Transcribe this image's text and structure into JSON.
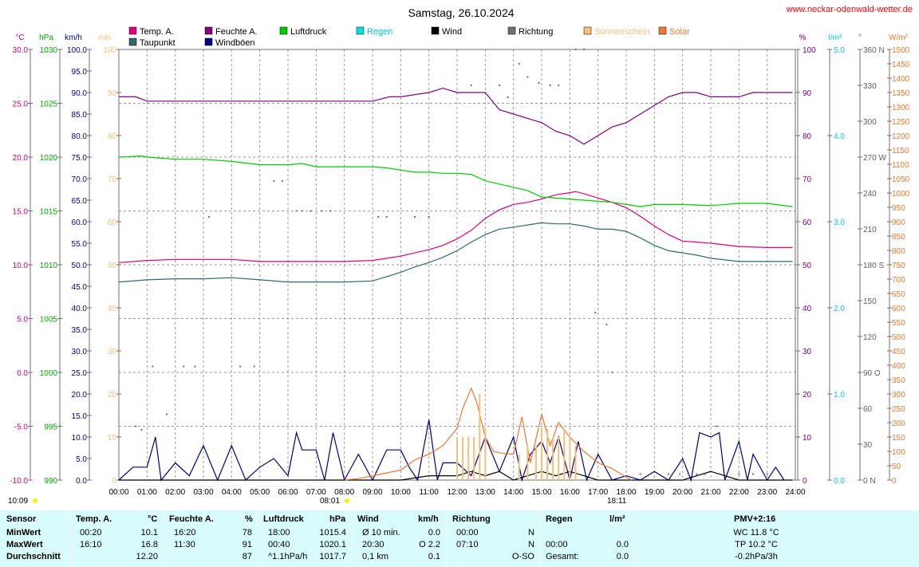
{
  "title": "Samstag, 26.10.2024",
  "site_url": "www.neckar-odenwald-wetter.de",
  "legend": [
    {
      "label": "Temp. A.",
      "color": "#e0007a"
    },
    {
      "label": "Taupunkt",
      "color": "#2f6b6b"
    },
    {
      "label": "Feuchte A.",
      "color": "#800080"
    },
    {
      "label": "Windböen",
      "color": "#000080"
    },
    {
      "label": "Luftdruck",
      "color": "#00cc00"
    },
    {
      "label": "Regen",
      "color": "#00e0e0"
    },
    {
      "label": "Wind",
      "color": "#000000"
    },
    {
      "label": "Richtung",
      "color": "#707070"
    },
    {
      "label": "Sonnenschein",
      "color": "#f5c07a"
    },
    {
      "label": "Solar",
      "color": "#f07830"
    }
  ],
  "axis_units": {
    "temp": "°C",
    "pressure": "hPa",
    "wind": "km/h",
    "sun": "min",
    "humidity": "%",
    "rain": "l/m²",
    "direction": "°",
    "solar": "W/m²"
  },
  "sun_marks": {
    "start": "10:09",
    "sunrise": "08:01",
    "sunset": "18:11"
  },
  "chart_data": {
    "type": "line",
    "x_range": [
      "00:00",
      "24:00"
    ],
    "x_ticks": [
      "00:00",
      "01:00",
      "02:00",
      "03:00",
      "04:00",
      "05:00",
      "06:00",
      "07:00",
      "08:00",
      "09:00",
      "10:00",
      "11:00",
      "12:00",
      "13:00",
      "14:00",
      "15:00",
      "16:00",
      "17:00",
      "18:00",
      "19:00",
      "20:00",
      "21:00",
      "22:00",
      "23:00",
      "24:00"
    ],
    "axes": {
      "temp": {
        "range": [
          -10,
          30
        ],
        "ticks": [
          "30.0",
          "25.0",
          "20.0",
          "15.0",
          "10.0",
          "5.0",
          "0.0",
          "-5.0",
          "-10.0"
        ],
        "color": "#e0007a"
      },
      "pressure": {
        "range": [
          990,
          1030
        ],
        "ticks": [
          "1030",
          "1025",
          "1020",
          "1015",
          "1010",
          "1005",
          "1000",
          "995",
          "990"
        ],
        "color": "#00aa00"
      },
      "wind": {
        "range": [
          0,
          100
        ],
        "ticks": [
          "100.0",
          "95.0",
          "90.0",
          "85.0",
          "80.0",
          "75.0",
          "70.0",
          "65.0",
          "60.0",
          "55.0",
          "50.0",
          "45.0",
          "40.0",
          "35.0",
          "30.0",
          "25.0",
          "20.0",
          "15.0",
          "10.0",
          "5.0",
          "0.0"
        ],
        "color": "#000080"
      },
      "sun": {
        "range": [
          0,
          100
        ],
        "ticks": [
          "100",
          "90",
          "80",
          "70",
          "60",
          "50",
          "40",
          "30",
          "20",
          "10",
          "0"
        ],
        "color": "#f5c07a"
      },
      "humidity": {
        "range": [
          0,
          100
        ],
        "ticks": [
          "100",
          "90",
          "80",
          "70",
          "60",
          "50",
          "40",
          "30",
          "20",
          "10",
          "0"
        ],
        "color": "#800080"
      },
      "rain": {
        "range": [
          0,
          5
        ],
        "ticks": [
          "5.0",
          "4.0",
          "3.0",
          "2.0",
          "1.0",
          "0.0"
        ],
        "color": "#00cccc"
      },
      "direction": {
        "range": [
          0,
          360
        ],
        "ticks": [
          "360 N",
          "330",
          "300",
          "270 W",
          "240",
          "210",
          "180 S",
          "150",
          "120",
          "90  O",
          "60",
          "30",
          "0   N"
        ],
        "color": "#606060"
      },
      "solar": {
        "range": [
          0,
          1500
        ],
        "ticks": [
          "1500",
          "1450",
          "1400",
          "1350",
          "1300",
          "1250",
          "1200",
          "1150",
          "1100",
          "1050",
          "1000",
          "950",
          "900",
          "850",
          "800",
          "750",
          "700",
          "650",
          "600",
          "550",
          "500",
          "450",
          "400",
          "350",
          "300",
          "250",
          "200",
          "150",
          "100",
          "50",
          "0"
        ],
        "color": "#f07830"
      }
    },
    "series": [
      {
        "name": "Temp. A.",
        "axis": "temp",
        "color": "#e0007a",
        "x": [
          0,
          1,
          2,
          3,
          4,
          5,
          6,
          7,
          8,
          9,
          9.5,
          10,
          10.5,
          11,
          11.5,
          12,
          12.5,
          13,
          13.5,
          14,
          14.5,
          15,
          15.5,
          16,
          16.2,
          16.5,
          17,
          17.5,
          18,
          18.5,
          19,
          19.5,
          20,
          20.5,
          21,
          22,
          23,
          23.9
        ],
        "y": [
          10.2,
          10.4,
          10.5,
          10.5,
          10.5,
          10.3,
          10.3,
          10.3,
          10.3,
          10.4,
          10.6,
          10.8,
          11.1,
          11.4,
          11.8,
          12.4,
          13.2,
          14.3,
          15.1,
          15.6,
          15.8,
          16.1,
          16.5,
          16.7,
          16.8,
          16.6,
          16.2,
          15.8,
          15.3,
          14.5,
          13.6,
          12.8,
          12.2,
          12.1,
          12.0,
          11.7,
          11.6,
          11.6
        ]
      },
      {
        "name": "Taupunkt",
        "axis": "temp",
        "color": "#2f6b6b",
        "x": [
          0,
          1,
          2,
          3,
          4,
          5,
          6,
          7,
          8,
          9,
          9.5,
          10,
          10.5,
          11,
          11.5,
          12,
          12.5,
          13,
          13.5,
          14,
          14.5,
          15,
          15.5,
          16,
          16.5,
          17,
          17.5,
          18,
          18.5,
          19,
          19.5,
          20,
          20.5,
          21,
          22,
          23,
          23.9
        ],
        "y": [
          8.4,
          8.6,
          8.7,
          8.7,
          8.8,
          8.6,
          8.4,
          8.4,
          8.4,
          8.5,
          8.9,
          9.3,
          9.8,
          10.2,
          10.7,
          11.3,
          12.1,
          12.8,
          13.3,
          13.5,
          13.7,
          13.9,
          13.8,
          13.8,
          13.6,
          13.3,
          13.3,
          13.1,
          12.5,
          11.8,
          11.3,
          11.1,
          10.9,
          10.6,
          10.3,
          10.3,
          10.3
        ]
      },
      {
        "name": "Feuchte A.",
        "axis": "humidity",
        "color": "#800080",
        "x": [
          0,
          0.6,
          1,
          2,
          3,
          4,
          5,
          6,
          7,
          8,
          9,
          9.6,
          10,
          11,
          11.5,
          12,
          12.5,
          13,
          13.5,
          14,
          14.5,
          15,
          15.5,
          16,
          16.5,
          17,
          17.5,
          18,
          18.5,
          19,
          19.5,
          20,
          20.5,
          21,
          22,
          22.5,
          23,
          23.9
        ],
        "y": [
          89,
          89,
          88,
          88,
          88,
          88,
          88,
          88,
          88,
          88,
          88,
          89,
          89,
          90,
          91,
          90,
          90,
          90,
          86,
          85,
          84,
          83,
          81,
          80,
          78,
          80,
          82,
          83,
          85,
          87,
          89,
          90,
          90,
          89,
          89,
          90,
          90,
          90
        ]
      },
      {
        "name": "Luftdruck",
        "axis": "pressure",
        "color": "#00cc00",
        "x": [
          0,
          0.8,
          1,
          2,
          3,
          4,
          5,
          6,
          6.5,
          7,
          8,
          9,
          9.5,
          10,
          10.5,
          11,
          11.5,
          12,
          12.5,
          13,
          13.5,
          14,
          14.5,
          15,
          16,
          17,
          17.5,
          18,
          18.5,
          19,
          20,
          21,
          22,
          23,
          23.9
        ],
        "y": [
          1020.0,
          1020.1,
          1020.0,
          1019.8,
          1019.8,
          1019.6,
          1019.3,
          1019.3,
          1019.4,
          1019.1,
          1019.1,
          1019.1,
          1019.0,
          1018.8,
          1018.6,
          1018.6,
          1018.5,
          1018.5,
          1018.4,
          1017.8,
          1017.5,
          1017.2,
          1016.9,
          1016.3,
          1016.1,
          1015.9,
          1015.8,
          1015.6,
          1015.4,
          1015.6,
          1015.6,
          1015.5,
          1015.7,
          1015.7,
          1015.4
        ]
      },
      {
        "name": "Windböen",
        "axis": "wind",
        "color": "#000080",
        "x": [
          0,
          0.5,
          1,
          1.3,
          1.5,
          2,
          2.5,
          3,
          3.5,
          4,
          4.5,
          5,
          5.5,
          6,
          6.3,
          6.5,
          7,
          7.3,
          7.6,
          8,
          8.5,
          9,
          9.5,
          10,
          10.3,
          10.6,
          11,
          11.3,
          11.5,
          12,
          12.5,
          13,
          13.5,
          14,
          14.3,
          14.6,
          15,
          15.3,
          15.6,
          16,
          16.3,
          16.6,
          17,
          17.5,
          18,
          18.5,
          19,
          19.5,
          20,
          20.3,
          20.6,
          21,
          21.3,
          21.5,
          22,
          22.3,
          22.5,
          23,
          23.3,
          23.6
        ],
        "y": [
          0,
          3,
          3,
          10,
          0,
          4,
          1,
          8,
          0,
          8,
          0,
          3,
          5,
          1,
          11,
          7,
          7,
          0,
          11,
          0,
          6,
          0,
          7,
          7,
          3,
          0,
          14,
          0,
          4,
          4,
          1,
          10,
          2,
          10,
          0,
          6,
          9,
          4,
          10,
          0,
          9,
          0,
          6,
          0,
          1,
          0,
          2,
          0,
          5,
          0,
          11,
          10,
          11,
          0,
          9,
          0,
          6,
          0,
          3,
          0
        ]
      },
      {
        "name": "Wind",
        "axis": "wind",
        "color": "#000000",
        "x": [
          0,
          2,
          4,
          6,
          8,
          10,
          11,
          12,
          12.5,
          13,
          13.5,
          14,
          14.5,
          15,
          15.5,
          16,
          16.5,
          17,
          18,
          20,
          21,
          21.5,
          22,
          23,
          23.9
        ],
        "y": [
          0,
          0,
          0,
          0,
          0,
          0,
          1,
          1,
          2,
          1,
          2,
          0,
          1,
          2,
          1,
          2,
          1,
          0,
          0,
          0,
          2,
          1,
          0,
          0,
          0
        ]
      },
      {
        "name": "Solar",
        "axis": "solar",
        "color": "#f07830",
        "x": [
          8,
          8.5,
          9,
          9.5,
          10,
          10.5,
          11,
          11.5,
          12,
          12.2,
          12.5,
          12.7,
          13,
          13.3,
          13.5,
          14,
          14.3,
          14.6,
          15,
          15.3,
          15.6,
          16,
          16.5,
          17,
          17.5,
          18,
          18.2
        ],
        "y": [
          0,
          5,
          15,
          25,
          35,
          70,
          90,
          120,
          180,
          250,
          320,
          270,
          150,
          100,
          95,
          90,
          220,
          60,
          230,
          120,
          200,
          150,
          100,
          60,
          40,
          10,
          0
        ]
      },
      {
        "name": "Sonnenschein",
        "axis": "sun",
        "color": "#f5c07a",
        "x": [
          12,
          12.2,
          12.4,
          12.6,
          12.8,
          13,
          14.2,
          14.5,
          14.8,
          15,
          15.2,
          15.4,
          15.6,
          15.8,
          16,
          16.2
        ],
        "y": [
          10,
          10,
          10,
          10,
          20,
          12,
          6,
          8,
          8,
          12,
          12,
          10,
          10,
          12,
          10,
          8
        ]
      },
      {
        "name": "Richtung",
        "axis": "direction",
        "color": "#707070",
        "x": [
          0.6,
          0.8,
          1.2,
          1.7,
          2.3,
          2.7,
          3.2,
          4.3,
          4.8,
          5.5,
          5.8,
          6.3,
          6.5,
          6.8,
          7.2,
          7.5,
          9.2,
          9.5,
          10.5,
          11,
          12.5,
          13.5,
          13.8,
          14.2,
          14.5,
          14.9,
          15.3,
          15.6,
          16.2,
          16.5,
          16.9,
          17.3,
          17.5,
          18.5,
          19,
          19.5,
          19.9,
          20.2,
          20.5,
          20.8,
          21.2,
          22,
          22.5,
          23
        ],
        "y": [
          45,
          42,
          95,
          55,
          95,
          95,
          220,
          95,
          95,
          250,
          250,
          225,
          225,
          225,
          225,
          225,
          220,
          220,
          220,
          220,
          330,
          330,
          320,
          348,
          337,
          332,
          330,
          330,
          380,
          380,
          140,
          130,
          90,
          5,
          0,
          5,
          5,
          5,
          5,
          5,
          45,
          5,
          5,
          5
        ]
      }
    ]
  },
  "stats": {
    "headers": [
      "Sensor",
      "Temp. A.",
      "°C",
      "Feuchte A.",
      "%",
      "Luftdruck",
      "hPa",
      "Wind",
      "km/h",
      "Richtung",
      "Regen",
      "l/m²",
      "PMV+2:16"
    ],
    "rows": [
      {
        "label": "MinWert",
        "t_time": "00:20",
        "t_val": "10.1",
        "h_time": "16:20",
        "h_val": "78",
        "p_time": "18:00",
        "p_val": "1015.4",
        "w_lbl": "Ø 10 min.",
        "w_val": "0.0",
        "r_time": "00:00",
        "r_dir": "N",
        "rain_time": "",
        "rain_val": "",
        "extra": "WC 11.8 °C"
      },
      {
        "label": "MaxWert",
        "t_time": "16:10",
        "t_val": "16.8",
        "h_time": "11:30",
        "h_val": "91",
        "p_time": "00:40",
        "p_val": "1020.1",
        "w_lbl": "20:30",
        "w_val": "O 2.2",
        "r_time": "07:10",
        "r_dir": "N",
        "rain_time": "00:00",
        "rain_val": "0.0",
        "extra": "TP 10.2 °C"
      },
      {
        "label": "Durchschnitt",
        "t_time": "",
        "t_val": "12.20",
        "h_time": "",
        "h_val": "87",
        "p_time": "^1.1hPa/h",
        "p_val": "1017.7",
        "w_lbl": "0,1 km",
        "w_val": "0.1",
        "r_time": "",
        "r_dir": "O-SO",
        "rain_time": "Gesamt:",
        "rain_val": "0.0",
        "extra": "-0.2hPa/3h"
      }
    ]
  }
}
